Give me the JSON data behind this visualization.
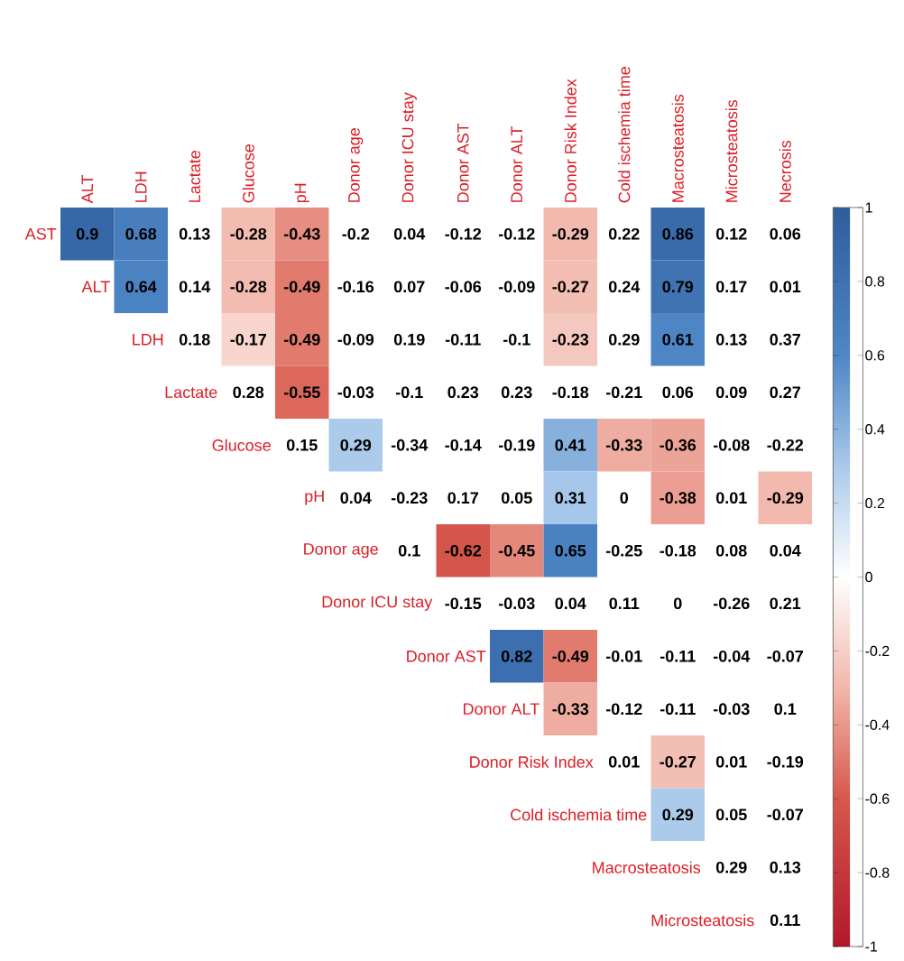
{
  "chart_data": {
    "type": "heatmap",
    "categories": [
      "ALT",
      "LDH",
      "Lactate",
      "Glucose",
      "pH",
      "Donor age",
      "Donor ICU stay",
      "Donor AST",
      "Donor ALT",
      "Donor Risk Index",
      "Cold ischemia time",
      "Macrosteatosis",
      "Microsteatosis",
      "Necrosis"
    ],
    "y_categories": [
      "AST",
      "ALT",
      "LDH",
      "Lactate",
      "Glucose",
      "pH",
      "Donor age",
      "Donor ICU stay",
      "Donor AST",
      "Donor ALT",
      "Donor Risk Index",
      "Cold ischemia time",
      "Macrosteatosis",
      "Microsteatosis"
    ],
    "cells": [
      [
        0.9,
        0.68,
        null,
        -0.28,
        -0.43,
        null,
        null,
        null,
        null,
        -0.29,
        null,
        0.86,
        null,
        null
      ],
      [
        null,
        0.64,
        null,
        -0.28,
        -0.49,
        null,
        null,
        null,
        null,
        -0.27,
        null,
        0.79,
        null,
        null
      ],
      [
        null,
        null,
        null,
        -0.17,
        -0.49,
        null,
        null,
        null,
        null,
        -0.23,
        null,
        0.61,
        null,
        null
      ],
      [
        null,
        null,
        null,
        null,
        -0.55,
        null,
        null,
        null,
        null,
        null,
        null,
        null,
        null,
        null
      ],
      [
        null,
        null,
        null,
        null,
        null,
        0.29,
        null,
        null,
        null,
        0.41,
        -0.33,
        -0.36,
        null,
        null
      ],
      [
        null,
        null,
        null,
        null,
        null,
        null,
        null,
        null,
        null,
        0.31,
        null,
        -0.38,
        null,
        -0.29
      ],
      [
        null,
        null,
        null,
        null,
        null,
        null,
        null,
        -0.62,
        -0.45,
        0.65,
        null,
        null,
        null,
        null
      ],
      [
        null,
        null,
        null,
        null,
        null,
        null,
        null,
        null,
        null,
        null,
        null,
        null,
        null,
        null
      ],
      [
        null,
        null,
        null,
        null,
        null,
        null,
        null,
        null,
        0.82,
        -0.49,
        null,
        null,
        null,
        null
      ],
      [
        null,
        null,
        null,
        null,
        null,
        null,
        null,
        null,
        null,
        -0.33,
        null,
        null,
        null,
        null
      ],
      [
        null,
        null,
        null,
        null,
        null,
        null,
        null,
        null,
        null,
        null,
        null,
        -0.27,
        null,
        null
      ],
      [
        null,
        null,
        null,
        null,
        null,
        null,
        null,
        null,
        null,
        null,
        null,
        0.29,
        null,
        null
      ],
      [
        null,
        null,
        null,
        null,
        null,
        null,
        null,
        null,
        null,
        null,
        null,
        null,
        null,
        null
      ],
      [
        null,
        null,
        null,
        null,
        null,
        null,
        null,
        null,
        null,
        null,
        null,
        null,
        null,
        null
      ]
    ],
    "cell_labels": [
      [
        "0.9",
        "0.68",
        "0.13",
        "-0.28",
        "-0.43",
        "-0.2",
        "0.04",
        "-0.12",
        "-0.12",
        "-0.29",
        "0.22",
        "0.86",
        "0.12",
        "0.06"
      ],
      [
        null,
        "0.64",
        "0.14",
        "-0.28",
        "-0.49",
        "-0.16",
        "0.07",
        "-0.06",
        "-0.09",
        "-0.27",
        "0.24",
        "0.79",
        "0.17",
        "0.01"
      ],
      [
        null,
        null,
        "0.18",
        "-0.17",
        "-0.49",
        "-0.09",
        "0.19",
        "-0.11",
        "-0.1",
        "-0.23",
        "0.29",
        "0.61",
        "0.13",
        "0.37"
      ],
      [
        null,
        null,
        null,
        "0.28",
        "-0.55",
        "-0.03",
        "-0.1",
        "0.23",
        "0.23",
        "-0.18",
        "-0.21",
        "0.06",
        "0.09",
        "0.27"
      ],
      [
        null,
        null,
        null,
        null,
        "0.15",
        "0.29",
        "-0.34",
        "-0.14",
        "-0.19",
        "0.41",
        "-0.33",
        "-0.36",
        "-0.08",
        "-0.22"
      ],
      [
        null,
        null,
        null,
        null,
        null,
        "0.04",
        "-0.23",
        "0.17",
        "0.05",
        "0.31",
        "0",
        "-0.38",
        "0.01",
        "-0.29"
      ],
      [
        null,
        null,
        null,
        null,
        null,
        null,
        "0.1",
        "-0.62",
        "-0.45",
        "0.65",
        "-0.25",
        "-0.18",
        "0.08",
        "0.04"
      ],
      [
        null,
        null,
        null,
        null,
        null,
        null,
        null,
        "-0.15",
        "-0.03",
        "0.04",
        "0.11",
        "0",
        "-0.26",
        "0.21"
      ],
      [
        null,
        null,
        null,
        null,
        null,
        null,
        null,
        null,
        "0.82",
        "-0.49",
        "-0.01",
        "-0.11",
        "-0.04",
        "-0.07"
      ],
      [
        null,
        null,
        null,
        null,
        null,
        null,
        null,
        null,
        null,
        "-0.33",
        "-0.12",
        "-0.11",
        "-0.03",
        "0.1"
      ],
      [
        null,
        null,
        null,
        null,
        null,
        null,
        null,
        null,
        null,
        null,
        "0.01",
        "-0.27",
        "0.01",
        "-0.19"
      ],
      [
        null,
        null,
        null,
        null,
        null,
        null,
        null,
        null,
        null,
        null,
        null,
        "0.29",
        "0.05",
        "-0.07"
      ],
      [
        null,
        null,
        null,
        null,
        null,
        null,
        null,
        null,
        null,
        null,
        null,
        null,
        "0.29",
        "0.13"
      ],
      [
        null,
        null,
        null,
        null,
        null,
        null,
        null,
        null,
        null,
        null,
        null,
        null,
        null,
        "0.11"
      ]
    ],
    "clim": [
      -1,
      1
    ],
    "cticks": [
      -1,
      -0.8,
      -0.6,
      -0.4,
      -0.2,
      0,
      0.2,
      0.4,
      0.6,
      0.8,
      1
    ]
  }
}
